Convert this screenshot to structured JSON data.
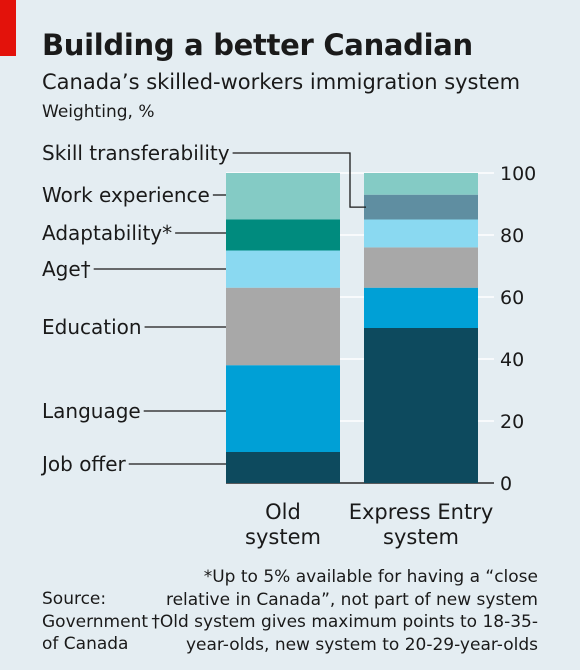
{
  "header": {
    "title": "Building a better Canadian",
    "subtitle": "Canada’s skilled-workers immigration system",
    "unit": "Weighting, %"
  },
  "chart_data": {
    "type": "bar",
    "stacked": true,
    "categories": [
      [
        "Old",
        "system"
      ],
      [
        "Express Entry",
        "system"
      ]
    ],
    "series": [
      {
        "name": "Job offer",
        "values": [
          10,
          50
        ],
        "color": "#0d4a5e"
      },
      {
        "name": "Language",
        "values": [
          28,
          13
        ],
        "color": "#00a0d6"
      },
      {
        "name": "Education",
        "values": [
          25,
          13
        ],
        "color": "#a8a8a8"
      },
      {
        "name": "Age†",
        "values": [
          12,
          9
        ],
        "color": "#8ad9f1"
      },
      {
        "name": "Adaptability*",
        "values": [
          10,
          0
        ],
        "color": "#008b7e"
      },
      {
        "name": "Work experience",
        "values": [
          15,
          0
        ],
        "color": "#84cbc5"
      },
      {
        "name": "Skill transferability",
        "values": [
          0,
          8
        ],
        "color": "#5f8ea1"
      },
      {
        "name": "",
        "values": [
          0,
          7
        ],
        "color": "#84cbc5"
      }
    ],
    "ylim": [
      0,
      100
    ],
    "yticks": [
      0,
      20,
      40,
      60,
      80,
      100
    ],
    "grid": true,
    "y_axis_side": "right"
  },
  "footer": {
    "source": [
      "Source:",
      "Government",
      "of Canada"
    ],
    "notes": [
      "*Up to 5% available for having a “close",
      "relative in Canada”, not part of new system",
      "†Old system gives maximum points to 18-35-",
      "year-olds, new system to 20-29-year-olds"
    ]
  }
}
